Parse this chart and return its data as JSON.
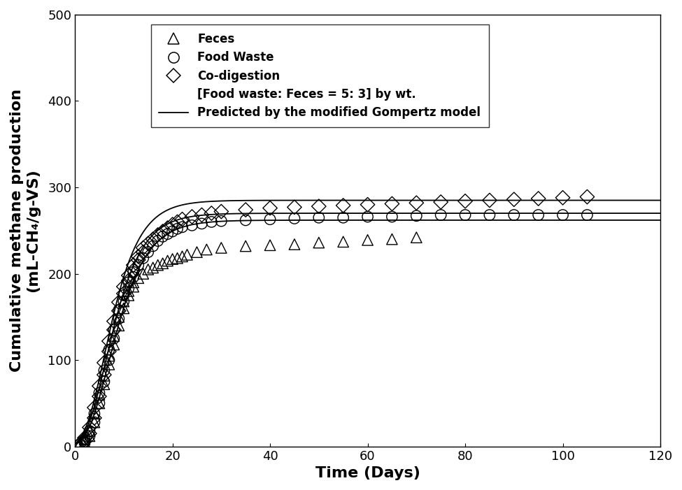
{
  "xlabel": "Time (Days)",
  "ylabel": "Cumulative methane production\n(mL-CH₄/g-VS)",
  "xlim": [
    0,
    120
  ],
  "ylim": [
    0,
    500
  ],
  "xticks": [
    0,
    20,
    40,
    60,
    80,
    100,
    120
  ],
  "yticks": [
    0,
    100,
    200,
    300,
    400,
    500
  ],
  "gompertz_feces": {
    "P": 262.0,
    "Rm": 22.0,
    "lambda": 2.5
  },
  "gompertz_food": {
    "P": 270.0,
    "Rm": 24.0,
    "lambda": 2.2
  },
  "gompertz_co": {
    "P": 285.0,
    "Rm": 26.0,
    "lambda": 2.0
  },
  "feces_x": [
    1,
    2,
    2,
    3,
    3,
    4,
    4,
    5,
    5,
    6,
    6,
    7,
    7,
    8,
    8,
    9,
    9,
    10,
    10,
    11,
    11,
    12,
    12,
    13,
    14,
    15,
    16,
    17,
    18,
    19,
    20,
    21,
    22,
    23,
    25,
    27,
    30,
    35,
    40,
    45,
    50,
    55,
    60,
    65,
    70
  ],
  "feces_y": [
    3,
    5,
    8,
    12,
    18,
    28,
    38,
    50,
    60,
    72,
    82,
    95,
    105,
    118,
    128,
    140,
    150,
    160,
    168,
    175,
    180,
    185,
    190,
    195,
    200,
    205,
    207,
    210,
    212,
    215,
    217,
    218,
    220,
    222,
    225,
    228,
    230,
    232,
    233,
    234,
    236,
    237,
    239,
    240,
    242
  ],
  "food_x": [
    1,
    2,
    2,
    3,
    3,
    4,
    4,
    5,
    5,
    6,
    6,
    7,
    7,
    8,
    8,
    9,
    9,
    10,
    10,
    11,
    11,
    12,
    12,
    13,
    14,
    15,
    16,
    17,
    18,
    19,
    20,
    21,
    22,
    24,
    26,
    28,
    30,
    35,
    40,
    45,
    50,
    55,
    60,
    65,
    70,
    75,
    80,
    85,
    90,
    95,
    100,
    105
  ],
  "food_y": [
    2,
    5,
    8,
    12,
    18,
    28,
    38,
    50,
    62,
    75,
    88,
    100,
    112,
    125,
    135,
    148,
    158,
    168,
    175,
    183,
    190,
    196,
    202,
    210,
    218,
    225,
    232,
    238,
    243,
    246,
    249,
    252,
    254,
    256,
    258,
    260,
    261,
    262,
    263,
    264,
    265,
    265,
    266,
    266,
    267,
    268,
    268,
    268,
    268,
    268,
    268,
    268
  ],
  "co_x": [
    1,
    2,
    2,
    3,
    3,
    4,
    4,
    5,
    5,
    6,
    6,
    7,
    7,
    8,
    8,
    9,
    9,
    10,
    10,
    11,
    11,
    12,
    12,
    13,
    13,
    14,
    14,
    15,
    16,
    17,
    18,
    19,
    20,
    21,
    22,
    24,
    26,
    28,
    30,
    35,
    40,
    45,
    50,
    55,
    60,
    65,
    70,
    75,
    80,
    85,
    90,
    95,
    100,
    105
  ],
  "co_y": [
    3,
    6,
    10,
    15,
    22,
    33,
    45,
    58,
    70,
    83,
    97,
    110,
    122,
    135,
    145,
    157,
    167,
    177,
    185,
    192,
    198,
    204,
    210,
    216,
    220,
    225,
    230,
    235,
    240,
    245,
    249,
    253,
    257,
    260,
    263,
    266,
    268,
    270,
    272,
    274,
    276,
    277,
    278,
    279,
    280,
    281,
    282,
    283,
    284,
    285,
    286,
    287,
    288,
    289
  ],
  "line_color": "#000000",
  "marker_color": "#000000",
  "background_color": "#ffffff",
  "legend_entries": [
    "Feces",
    "Food Waste",
    "Co-digestion",
    "[Food waste: Feces = 5: 3] by wt.",
    "Predicted by the modified Gompertz model"
  ],
  "fontsize_axis_label": 16,
  "fontsize_tick": 13,
  "fontsize_legend": 12
}
